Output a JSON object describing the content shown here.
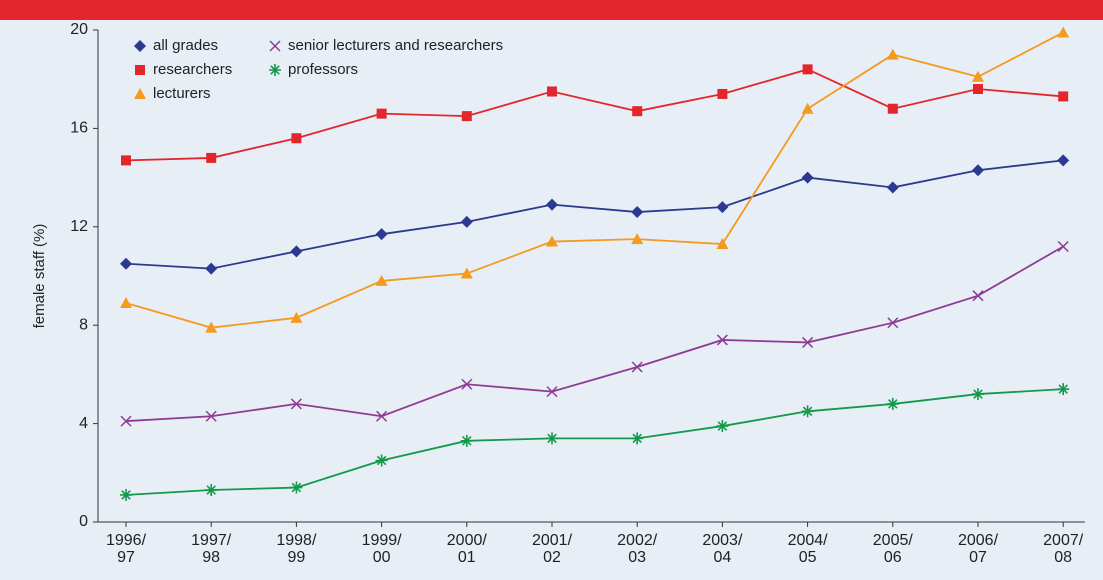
{
  "chart_data": {
    "type": "line",
    "y_label": "female staff (%)",
    "categories": [
      "1996/\n97",
      "1997/\n98",
      "1998/\n99",
      "1999/\n00",
      "2000/\n01",
      "2001/\n02",
      "2002/\n03",
      "2003/\n04",
      "2004/\n05",
      "2005/\n06",
      "2006/\n07",
      "2007/\n08"
    ],
    "ylim": [
      0,
      20
    ],
    "yticks": [
      0,
      4,
      8,
      12,
      16,
      20
    ],
    "grid": false,
    "legend": "upper left",
    "series": [
      {
        "name": "all grades",
        "color": "#2b3990",
        "marker": "diamond",
        "values": [
          10.5,
          10.3,
          11.0,
          11.7,
          12.2,
          12.9,
          12.6,
          12.8,
          14.0,
          13.6,
          14.3,
          14.7
        ]
      },
      {
        "name": "researchers",
        "color": "#e3262c",
        "marker": "square",
        "values": [
          14.7,
          14.8,
          15.6,
          16.6,
          16.5,
          17.5,
          16.7,
          17.4,
          18.4,
          16.8,
          17.6,
          17.3
        ]
      },
      {
        "name": "lecturers",
        "color": "#f39b1f",
        "marker": "triangle",
        "values": [
          8.9,
          7.9,
          8.3,
          9.8,
          10.1,
          11.4,
          11.5,
          11.3,
          16.8,
          19.0,
          18.1,
          19.9
        ]
      },
      {
        "name": "senior lecturers and researchers",
        "color": "#8e3c92",
        "marker": "x",
        "values": [
          4.1,
          4.3,
          4.8,
          4.3,
          5.6,
          5.3,
          6.3,
          7.4,
          7.3,
          8.1,
          9.2,
          11.2
        ]
      },
      {
        "name": "professors",
        "color": "#14994a",
        "marker": "asterisk",
        "values": [
          1.1,
          1.3,
          1.4,
          2.5,
          3.3,
          3.4,
          3.4,
          3.9,
          4.5,
          4.8,
          5.2,
          5.4
        ]
      }
    ]
  }
}
